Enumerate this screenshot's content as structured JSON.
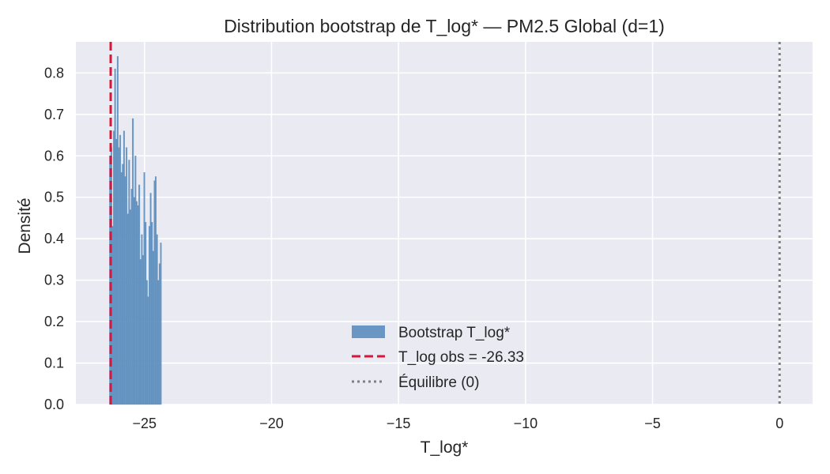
{
  "chart_data": {
    "type": "bar",
    "title": "Distribution bootstrap de T_log* — PM2.5 Global (d=1)",
    "xlabel": "T_log*",
    "ylabel": "Densité",
    "xlim": [
      -27.7,
      1.3
    ],
    "ylim": [
      0,
      0.875
    ],
    "xticks": [
      -25,
      -20,
      -15,
      -10,
      -5,
      0
    ],
    "xtick_labels": [
      "−25",
      "−20",
      "−15",
      "−10",
      "−5",
      "0"
    ],
    "yticks": [
      0.0,
      0.1,
      0.2,
      0.3,
      0.4,
      0.5,
      0.6,
      0.7,
      0.8
    ],
    "ytick_labels": [
      "0.0",
      "0.1",
      "0.2",
      "0.3",
      "0.4",
      "0.5",
      "0.6",
      "0.7",
      "0.8"
    ],
    "grid": true,
    "legend_position": "lower-center",
    "colors": {
      "plot_background": "#e9eaf2",
      "grid": "#ffffff",
      "histogram": "#5b8dbd",
      "observed_line": "#dc143c",
      "equilibrium_line": "#808080"
    },
    "histogram": {
      "name": "Bootstrap T_log*",
      "bin_width": 0.05,
      "bins": [
        {
          "x": -26.38,
          "y": 0.6
        },
        {
          "x": -26.33,
          "y": 0.62
        },
        {
          "x": -26.28,
          "y": 0.43
        },
        {
          "x": -26.23,
          "y": 0.66
        },
        {
          "x": -26.18,
          "y": 0.81
        },
        {
          "x": -26.13,
          "y": 0.64
        },
        {
          "x": -26.08,
          "y": 0.84
        },
        {
          "x": -26.03,
          "y": 0.62
        },
        {
          "x": -25.98,
          "y": 0.65
        },
        {
          "x": -25.93,
          "y": 0.56
        },
        {
          "x": -25.88,
          "y": 0.58
        },
        {
          "x": -25.83,
          "y": 0.66
        },
        {
          "x": -25.78,
          "y": 0.55
        },
        {
          "x": -25.73,
          "y": 0.62
        },
        {
          "x": -25.68,
          "y": 0.46
        },
        {
          "x": -25.63,
          "y": 0.59
        },
        {
          "x": -25.58,
          "y": 0.47
        },
        {
          "x": -25.53,
          "y": 0.52
        },
        {
          "x": -25.48,
          "y": 0.69
        },
        {
          "x": -25.43,
          "y": 0.5
        },
        {
          "x": -25.38,
          "y": 0.6
        },
        {
          "x": -25.33,
          "y": 0.49
        },
        {
          "x": -25.28,
          "y": 0.48
        },
        {
          "x": -25.23,
          "y": 0.53
        },
        {
          "x": -25.18,
          "y": 0.35
        },
        {
          "x": -25.13,
          "y": 0.41
        },
        {
          "x": -25.08,
          "y": 0.36
        },
        {
          "x": -25.03,
          "y": 0.56
        },
        {
          "x": -24.98,
          "y": 0.44
        },
        {
          "x": -24.93,
          "y": 0.3
        },
        {
          "x": -24.88,
          "y": 0.26
        },
        {
          "x": -24.83,
          "y": 0.43
        },
        {
          "x": -24.78,
          "y": 0.51
        },
        {
          "x": -24.73,
          "y": 0.44
        },
        {
          "x": -24.68,
          "y": 0.37
        },
        {
          "x": -24.63,
          "y": 0.54
        },
        {
          "x": -24.58,
          "y": 0.55
        },
        {
          "x": -24.53,
          "y": 0.41
        },
        {
          "x": -24.48,
          "y": 0.3
        },
        {
          "x": -24.43,
          "y": 0.34
        },
        {
          "x": -24.38,
          "y": 0.39
        }
      ]
    },
    "observed_line": {
      "name": "T_log obs = -26.33",
      "x": -26.33
    },
    "equilibrium_line": {
      "name": "Équilibre (0)",
      "x": 0
    }
  }
}
